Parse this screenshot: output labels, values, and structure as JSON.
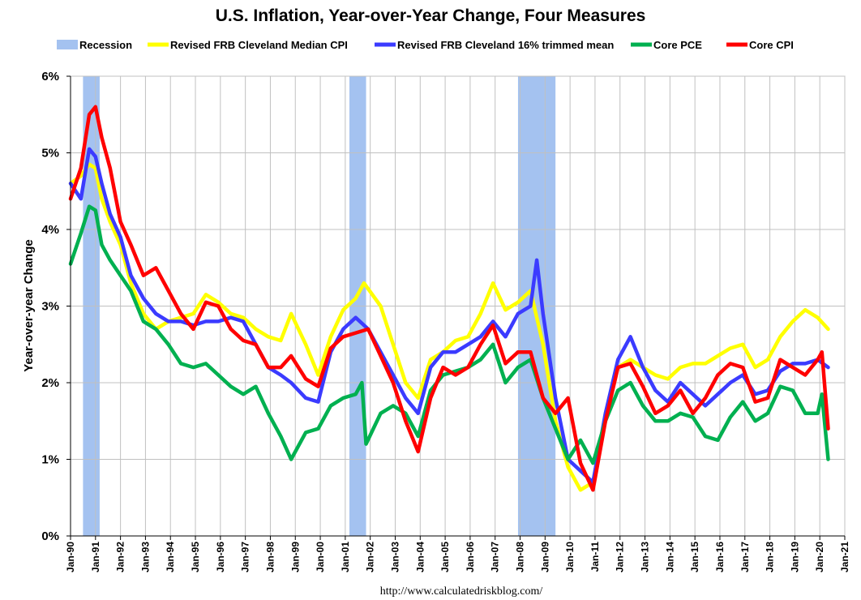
{
  "chart_data": {
    "type": "line",
    "title": "U.S. Inflation, Year-over-Year Change, Four Measures",
    "ylabel": "Year-over-year Change",
    "xlabel": "",
    "ylim": [
      0,
      6
    ],
    "y_ticks": [
      "0%",
      "1%",
      "2%",
      "3%",
      "4%",
      "5%",
      "6%"
    ],
    "x_ticks": [
      "Jan-90",
      "Jan-91",
      "Jan-92",
      "Jan-93",
      "Jan-94",
      "Jan-95",
      "Jan-96",
      "Jan-97",
      "Jan-98",
      "Jan-99",
      "Jan-00",
      "Jan-01",
      "Jan-02",
      "Jan-03",
      "Jan-04",
      "Jan-05",
      "Jan-06",
      "Jan-07",
      "Jan-08",
      "Jan-09",
      "Jan-10",
      "Jan-11",
      "Jan-12",
      "Jan-13",
      "Jan-14",
      "Jan-15",
      "Jan-16",
      "Jan-17",
      "Jan-18",
      "Jan-19",
      "Jan-20",
      "Jan-21"
    ],
    "grid": true,
    "legend_position": "top",
    "source": "http://www.calculatedriskblog.com/",
    "recessions": [
      {
        "name": "Recession",
        "start": "1990-07",
        "end": "1991-03"
      },
      {
        "name": "Recession",
        "start": "2001-03",
        "end": "2001-11"
      },
      {
        "name": "Recession",
        "start": "2007-12",
        "end": "2009-06"
      }
    ],
    "legend": [
      {
        "name": "Recession",
        "color": "#a4c2f0",
        "kind": "band"
      },
      {
        "name": "Revised FRB Cleveland Median CPI",
        "color": "#ffff00",
        "kind": "line"
      },
      {
        "name": "Revised FRB Cleveland 16% trimmed mean",
        "color": "#3b3bff",
        "kind": "line"
      },
      {
        "name": "Core PCE",
        "color": "#00b050",
        "kind": "line"
      },
      {
        "name": "Core CPI",
        "color": "#ff0000",
        "kind": "line"
      }
    ],
    "series": [
      {
        "name": "Revised FRB Cleveland Median CPI",
        "color": "#ffff00",
        "points": [
          [
            "1990-01",
            4.6
          ],
          [
            "1990-06",
            4.7
          ],
          [
            "1990-10",
            4.85
          ],
          [
            "1991-01",
            4.8
          ],
          [
            "1991-04",
            4.4
          ],
          [
            "1991-08",
            4.1
          ],
          [
            "1992-01",
            3.8
          ],
          [
            "1992-06",
            3.3
          ],
          [
            "1992-12",
            2.9
          ],
          [
            "1993-06",
            2.7
          ],
          [
            "1993-12",
            2.8
          ],
          [
            "1994-06",
            2.85
          ],
          [
            "1994-12",
            2.9
          ],
          [
            "1995-06",
            3.15
          ],
          [
            "1995-12",
            3.05
          ],
          [
            "1996-06",
            2.9
          ],
          [
            "1996-12",
            2.85
          ],
          [
            "1997-06",
            2.7
          ],
          [
            "1997-12",
            2.6
          ],
          [
            "1998-06",
            2.55
          ],
          [
            "1998-11",
            2.9
          ],
          [
            "1999-06",
            2.5
          ],
          [
            "1999-12",
            2.1
          ],
          [
            "2000-06",
            2.6
          ],
          [
            "2000-12",
            2.95
          ],
          [
            "2001-06",
            3.1
          ],
          [
            "2001-10",
            3.3
          ],
          [
            "2002-06",
            3.0
          ],
          [
            "2002-12",
            2.5
          ],
          [
            "2003-06",
            2.0
          ],
          [
            "2003-12",
            1.8
          ],
          [
            "2004-06",
            2.3
          ],
          [
            "2004-12",
            2.4
          ],
          [
            "2005-06",
            2.55
          ],
          [
            "2005-12",
            2.6
          ],
          [
            "2006-06",
            2.9
          ],
          [
            "2006-12",
            3.3
          ],
          [
            "2007-06",
            2.95
          ],
          [
            "2007-12",
            3.05
          ],
          [
            "2008-06",
            3.2
          ],
          [
            "2008-12",
            2.5
          ],
          [
            "2009-06",
            1.5
          ],
          [
            "2009-12",
            0.9
          ],
          [
            "2010-06",
            0.6
          ],
          [
            "2010-12",
            0.7
          ],
          [
            "2011-06",
            1.6
          ],
          [
            "2011-12",
            2.2
          ],
          [
            "2012-06",
            2.3
          ],
          [
            "2012-12",
            2.2
          ],
          [
            "2013-06",
            2.1
          ],
          [
            "2013-12",
            2.05
          ],
          [
            "2014-06",
            2.2
          ],
          [
            "2014-12",
            2.25
          ],
          [
            "2015-06",
            2.25
          ],
          [
            "2015-12",
            2.35
          ],
          [
            "2016-06",
            2.45
          ],
          [
            "2016-12",
            2.5
          ],
          [
            "2017-06",
            2.2
          ],
          [
            "2017-12",
            2.3
          ],
          [
            "2018-06",
            2.6
          ],
          [
            "2018-12",
            2.8
          ],
          [
            "2019-06",
            2.95
          ],
          [
            "2019-12",
            2.85
          ],
          [
            "2020-05",
            2.7
          ]
        ]
      },
      {
        "name": "Revised FRB Cleveland 16% trimmed mean",
        "color": "#3b3bff",
        "points": [
          [
            "1990-01",
            4.6
          ],
          [
            "1990-06",
            4.4
          ],
          [
            "1990-10",
            5.05
          ],
          [
            "1991-01",
            4.95
          ],
          [
            "1991-04",
            4.6
          ],
          [
            "1991-08",
            4.2
          ],
          [
            "1992-01",
            3.9
          ],
          [
            "1992-06",
            3.4
          ],
          [
            "1992-12",
            3.1
          ],
          [
            "1993-06",
            2.9
          ],
          [
            "1993-12",
            2.8
          ],
          [
            "1994-06",
            2.8
          ],
          [
            "1994-12",
            2.75
          ],
          [
            "1995-06",
            2.8
          ],
          [
            "1995-12",
            2.8
          ],
          [
            "1996-06",
            2.85
          ],
          [
            "1996-12",
            2.8
          ],
          [
            "1997-06",
            2.5
          ],
          [
            "1997-12",
            2.2
          ],
          [
            "1998-06",
            2.1
          ],
          [
            "1998-11",
            2.0
          ],
          [
            "1999-06",
            1.8
          ],
          [
            "1999-12",
            1.75
          ],
          [
            "2000-06",
            2.4
          ],
          [
            "2000-12",
            2.7
          ],
          [
            "2001-06",
            2.85
          ],
          [
            "2001-12",
            2.7
          ],
          [
            "2002-06",
            2.4
          ],
          [
            "2002-12",
            2.1
          ],
          [
            "2003-06",
            1.8
          ],
          [
            "2003-12",
            1.6
          ],
          [
            "2004-06",
            2.2
          ],
          [
            "2004-12",
            2.4
          ],
          [
            "2005-06",
            2.4
          ],
          [
            "2005-12",
            2.5
          ],
          [
            "2006-06",
            2.6
          ],
          [
            "2006-12",
            2.8
          ],
          [
            "2007-06",
            2.6
          ],
          [
            "2007-12",
            2.9
          ],
          [
            "2008-06",
            3.0
          ],
          [
            "2008-09",
            3.6
          ],
          [
            "2008-12",
            2.9
          ],
          [
            "2009-06",
            1.8
          ],
          [
            "2009-12",
            1.0
          ],
          [
            "2010-06",
            0.85
          ],
          [
            "2010-12",
            0.7
          ],
          [
            "2011-06",
            1.6
          ],
          [
            "2011-12",
            2.3
          ],
          [
            "2012-06",
            2.6
          ],
          [
            "2012-12",
            2.2
          ],
          [
            "2013-06",
            1.9
          ],
          [
            "2013-12",
            1.75
          ],
          [
            "2014-06",
            2.0
          ],
          [
            "2014-12",
            1.85
          ],
          [
            "2015-06",
            1.7
          ],
          [
            "2015-12",
            1.85
          ],
          [
            "2016-06",
            2.0
          ],
          [
            "2016-12",
            2.1
          ],
          [
            "2017-06",
            1.85
          ],
          [
            "2017-12",
            1.9
          ],
          [
            "2018-06",
            2.15
          ],
          [
            "2018-12",
            2.25
          ],
          [
            "2019-06",
            2.25
          ],
          [
            "2019-12",
            2.3
          ],
          [
            "2020-05",
            2.2
          ]
        ]
      },
      {
        "name": "Core PCE",
        "color": "#00b050",
        "points": [
          [
            "1990-01",
            3.55
          ],
          [
            "1990-06",
            3.95
          ],
          [
            "1990-10",
            4.3
          ],
          [
            "1991-01",
            4.25
          ],
          [
            "1991-04",
            3.8
          ],
          [
            "1991-08",
            3.6
          ],
          [
            "1992-01",
            3.4
          ],
          [
            "1992-06",
            3.2
          ],
          [
            "1992-12",
            2.8
          ],
          [
            "1993-06",
            2.7
          ],
          [
            "1993-12",
            2.5
          ],
          [
            "1994-06",
            2.25
          ],
          [
            "1994-12",
            2.2
          ],
          [
            "1995-06",
            2.25
          ],
          [
            "1995-12",
            2.1
          ],
          [
            "1996-06",
            1.95
          ],
          [
            "1996-12",
            1.85
          ],
          [
            "1997-06",
            1.95
          ],
          [
            "1997-12",
            1.6
          ],
          [
            "1998-06",
            1.3
          ],
          [
            "1998-11",
            1.0
          ],
          [
            "1999-06",
            1.35
          ],
          [
            "1999-12",
            1.4
          ],
          [
            "2000-06",
            1.7
          ],
          [
            "2000-12",
            1.8
          ],
          [
            "2001-06",
            1.85
          ],
          [
            "2001-09",
            2.0
          ],
          [
            "2001-11",
            1.2
          ],
          [
            "2002-06",
            1.6
          ],
          [
            "2002-12",
            1.7
          ],
          [
            "2003-06",
            1.6
          ],
          [
            "2003-12",
            1.3
          ],
          [
            "2004-06",
            1.9
          ],
          [
            "2004-12",
            2.1
          ],
          [
            "2005-06",
            2.15
          ],
          [
            "2005-12",
            2.2
          ],
          [
            "2006-06",
            2.3
          ],
          [
            "2006-12",
            2.5
          ],
          [
            "2007-06",
            2.0
          ],
          [
            "2007-12",
            2.2
          ],
          [
            "2008-06",
            2.3
          ],
          [
            "2008-12",
            1.8
          ],
          [
            "2009-06",
            1.4
          ],
          [
            "2009-12",
            1.0
          ],
          [
            "2010-06",
            1.25
          ],
          [
            "2010-12",
            0.95
          ],
          [
            "2011-06",
            1.5
          ],
          [
            "2011-12",
            1.9
          ],
          [
            "2012-06",
            2.0
          ],
          [
            "2012-12",
            1.7
          ],
          [
            "2013-06",
            1.5
          ],
          [
            "2013-12",
            1.5
          ],
          [
            "2014-06",
            1.6
          ],
          [
            "2014-12",
            1.55
          ],
          [
            "2015-06",
            1.3
          ],
          [
            "2015-12",
            1.25
          ],
          [
            "2016-06",
            1.55
          ],
          [
            "2016-12",
            1.75
          ],
          [
            "2017-06",
            1.5
          ],
          [
            "2017-12",
            1.6
          ],
          [
            "2018-06",
            1.95
          ],
          [
            "2018-12",
            1.9
          ],
          [
            "2019-06",
            1.6
          ],
          [
            "2019-12",
            1.6
          ],
          [
            "2020-02",
            1.85
          ],
          [
            "2020-05",
            1.0
          ]
        ]
      },
      {
        "name": "Core CPI",
        "color": "#ff0000",
        "points": [
          [
            "1990-01",
            4.4
          ],
          [
            "1990-06",
            4.8
          ],
          [
            "1990-10",
            5.5
          ],
          [
            "1991-01",
            5.6
          ],
          [
            "1991-04",
            5.2
          ],
          [
            "1991-08",
            4.8
          ],
          [
            "1992-01",
            4.1
          ],
          [
            "1992-06",
            3.8
          ],
          [
            "1992-12",
            3.4
          ],
          [
            "1993-06",
            3.5
          ],
          [
            "1993-12",
            3.2
          ],
          [
            "1994-06",
            2.9
          ],
          [
            "1994-12",
            2.7
          ],
          [
            "1995-06",
            3.05
          ],
          [
            "1995-12",
            3.0
          ],
          [
            "1996-06",
            2.7
          ],
          [
            "1996-12",
            2.55
          ],
          [
            "1997-06",
            2.5
          ],
          [
            "1997-12",
            2.2
          ],
          [
            "1998-06",
            2.2
          ],
          [
            "1998-11",
            2.35
          ],
          [
            "1999-06",
            2.05
          ],
          [
            "1999-12",
            1.95
          ],
          [
            "2000-06",
            2.45
          ],
          [
            "2000-12",
            2.6
          ],
          [
            "2001-06",
            2.65
          ],
          [
            "2001-12",
            2.7
          ],
          [
            "2002-06",
            2.35
          ],
          [
            "2002-12",
            2.0
          ],
          [
            "2003-06",
            1.5
          ],
          [
            "2003-12",
            1.1
          ],
          [
            "2004-06",
            1.8
          ],
          [
            "2004-12",
            2.2
          ],
          [
            "2005-06",
            2.1
          ],
          [
            "2005-12",
            2.2
          ],
          [
            "2006-06",
            2.5
          ],
          [
            "2006-12",
            2.75
          ],
          [
            "2007-06",
            2.25
          ],
          [
            "2007-12",
            2.4
          ],
          [
            "2008-06",
            2.4
          ],
          [
            "2008-12",
            1.8
          ],
          [
            "2009-06",
            1.6
          ],
          [
            "2009-12",
            1.8
          ],
          [
            "2010-06",
            0.95
          ],
          [
            "2010-12",
            0.6
          ],
          [
            "2011-06",
            1.5
          ],
          [
            "2011-12",
            2.2
          ],
          [
            "2012-06",
            2.25
          ],
          [
            "2012-12",
            1.95
          ],
          [
            "2013-06",
            1.6
          ],
          [
            "2013-12",
            1.7
          ],
          [
            "2014-06",
            1.9
          ],
          [
            "2014-12",
            1.6
          ],
          [
            "2015-06",
            1.8
          ],
          [
            "2015-12",
            2.1
          ],
          [
            "2016-06",
            2.25
          ],
          [
            "2016-12",
            2.2
          ],
          [
            "2017-06",
            1.75
          ],
          [
            "2017-12",
            1.8
          ],
          [
            "2018-06",
            2.3
          ],
          [
            "2018-12",
            2.2
          ],
          [
            "2019-06",
            2.1
          ],
          [
            "2019-12",
            2.3
          ],
          [
            "2020-02",
            2.4
          ],
          [
            "2020-05",
            1.4
          ]
        ]
      }
    ]
  }
}
